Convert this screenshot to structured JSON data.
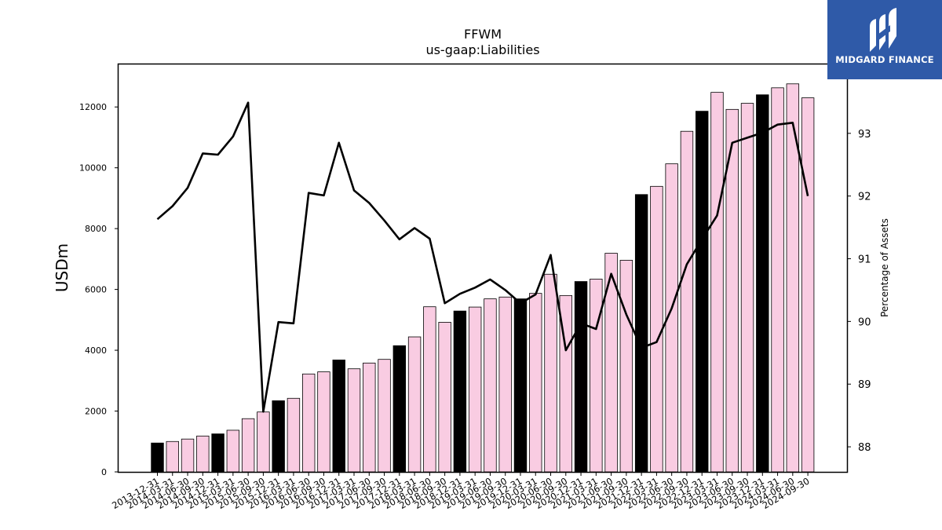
{
  "brand": {
    "name": "MIDGARD FINANCE",
    "logo_icon": "midgard-m-icon",
    "background_color": "#2f5aa8"
  },
  "chart_data": {
    "type": "bar",
    "title": "FFWM",
    "subtitle": "us-gaap:Liabilities",
    "ylabel": "USDm",
    "y2label": "Percentage of Assets",
    "ylim": [
      0,
      13400
    ],
    "y2lim": [
      87.6,
      94.1
    ],
    "yticks": [
      0,
      2000,
      4000,
      6000,
      8000,
      10000,
      12000
    ],
    "y2ticks": [
      88,
      89,
      90,
      91,
      92,
      93
    ],
    "grid": false,
    "legend": "none",
    "colors": {
      "year_end_bar": "#000000",
      "quarter_bar": "#f9cce2",
      "line": "#000000"
    },
    "categories": [
      "2013-12-31",
      "2014-03-31",
      "2014-06-30",
      "2014-09-30",
      "2014-12-31",
      "2015-03-31",
      "2015-06-30",
      "2015-09-30",
      "2015-12-31",
      "2016-03-31",
      "2016-06-30",
      "2016-09-30",
      "2016-12-31",
      "2017-03-31",
      "2017-06-30",
      "2017-09-30",
      "2017-12-31",
      "2018-03-31",
      "2018-06-30",
      "2018-09-30",
      "2018-12-31",
      "2019-03-31",
      "2019-06-30",
      "2019-09-30",
      "2019-12-31",
      "2020-03-31",
      "2020-06-30",
      "2020-09-30",
      "2020-12-31",
      "2021-03-31",
      "2021-06-30",
      "2021-09-30",
      "2021-12-31",
      "2022-03-31",
      "2022-06-30",
      "2022-09-30",
      "2022-12-31",
      "2023-03-31",
      "2023-06-30",
      "2023-09-30",
      "2023-12-31",
      "2024-03-31",
      "2024-06-30",
      "2024-09-30"
    ],
    "series": [
      {
        "kind": "bar",
        "axis": "left",
        "values": [
          950,
          1000,
          1080,
          1180,
          1250,
          1370,
          1750,
          1970,
          2340,
          2420,
          3220,
          3290,
          3680,
          3390,
          3580,
          3700,
          4150,
          4440,
          5430,
          4920,
          5290,
          5420,
          5690,
          5750,
          5690,
          5870,
          6500,
          5800,
          6260,
          6340,
          7190,
          6960,
          9120,
          9390,
          10130,
          11200,
          11860,
          12480,
          11920,
          12120,
          12400,
          12630,
          12760,
          12300
        ]
      },
      {
        "kind": "line",
        "axis": "right",
        "values": [
          91.63,
          91.84,
          92.13,
          92.68,
          92.66,
          92.95,
          93.49,
          88.56,
          89.99,
          89.97,
          92.05,
          92.01,
          92.85,
          92.09,
          91.89,
          91.61,
          91.31,
          91.49,
          91.32,
          90.29,
          90.44,
          90.54,
          90.67,
          90.5,
          90.29,
          90.43,
          91.06,
          89.54,
          89.97,
          89.88,
          90.76,
          90.11,
          89.58,
          89.67,
          90.21,
          90.91,
          91.31,
          91.69,
          92.85,
          92.93,
          93.01,
          93.14,
          93.17,
          92.0
        ]
      }
    ]
  }
}
